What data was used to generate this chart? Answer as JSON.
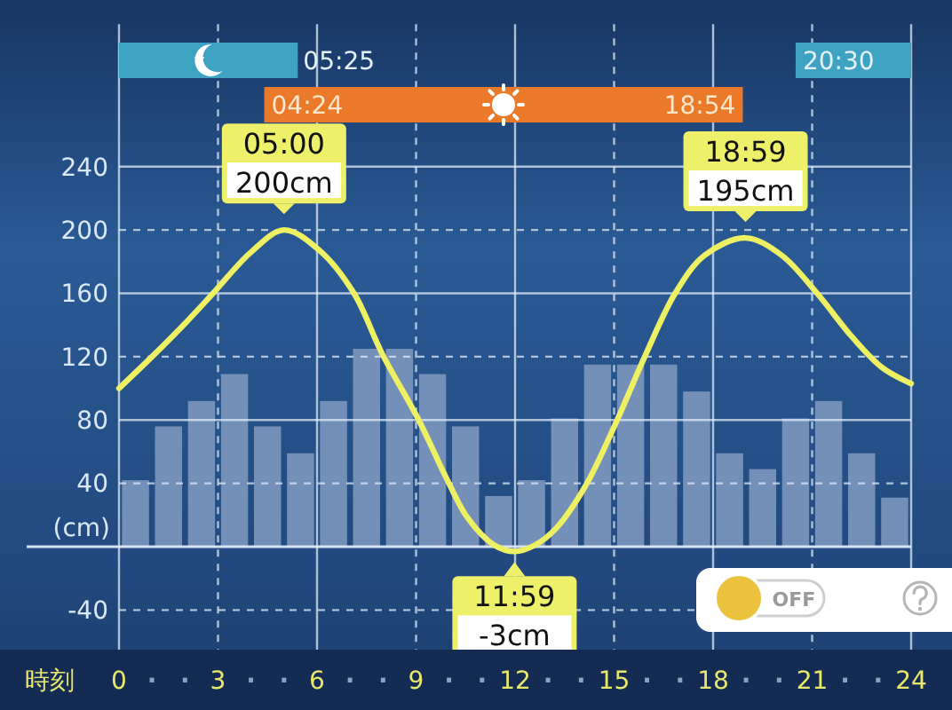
{
  "chart_data": {
    "type": "line",
    "xlabel": "時刻",
    "ylabel": "(cm)",
    "xlim": [
      0,
      24
    ],
    "ylim": [
      -65,
      330
    ],
    "xticks": [
      0,
      {
        "value": 1,
        "label": "·"
      },
      {
        "value": 2,
        "label": "·"
      },
      3,
      {
        "value": 4,
        "label": "·"
      },
      {
        "value": 5,
        "label": "·"
      },
      6,
      {
        "value": 7,
        "label": "·"
      },
      {
        "value": 8,
        "label": "·"
      },
      9,
      {
        "value": 10,
        "label": "·"
      },
      {
        "value": 11,
        "label": "·"
      },
      12,
      {
        "value": 13,
        "label": "·"
      },
      {
        "value": 14,
        "label": "·"
      },
      15,
      {
        "value": 16,
        "label": "·"
      },
      {
        "value": 17,
        "label": "·"
      },
      18,
      {
        "value": 19,
        "label": "·"
      },
      {
        "value": 20,
        "label": "·"
      },
      21,
      {
        "value": 22,
        "label": "·"
      },
      {
        "value": 23,
        "label": "·"
      },
      24
    ],
    "yticks": [
      -40,
      {
        "value": 0,
        "label": null
      },
      40,
      80,
      120,
      160,
      200,
      240
    ],
    "grid": true,
    "series": [
      {
        "type": "bar",
        "color": "#7590b8",
        "x": [
          0.5,
          1.5,
          2.5,
          3.5,
          4.5,
          5.5,
          6.5,
          7.5,
          8.5,
          9.5,
          10.5,
          11.5,
          12.5,
          13.5,
          14.5,
          15.5,
          16.5,
          17.5,
          18.5,
          19.5,
          20.5,
          21.5,
          22.5,
          23.5
        ],
        "values": [
          42,
          76,
          92,
          109,
          76,
          59,
          92,
          125,
          125,
          109,
          76,
          32,
          42,
          81,
          115,
          115,
          115,
          98,
          59,
          49,
          81,
          92,
          59,
          31
        ]
      },
      {
        "color": "#eef064",
        "x": [
          0,
          1,
          2,
          2.85,
          4,
          5,
          6.08,
          7.12,
          7.97,
          9.08,
          9.95,
          10.57,
          11.37,
          11.983,
          12.6,
          13.26,
          14.15,
          15.05,
          15.95,
          16.85,
          17.74,
          18.983,
          20.08,
          21.15,
          22.23,
          23.13,
          24
        ],
        "values": [
          100,
          120,
          141,
          160,
          186,
          200,
          187,
          160,
          122,
          80,
          42,
          18,
          1,
          -3,
          1,
          12,
          39,
          78,
          121,
          160,
          184,
          195,
          184,
          160,
          132,
          113,
          103
        ]
      }
    ],
    "bands": [
      {
        "axis": "x",
        "from": 0,
        "to": 5.417,
        "color": "#3ea2c3"
      },
      {
        "axis": "x",
        "from": 20.5,
        "to": 24,
        "color": "#3ea2c3"
      },
      {
        "axis": "x",
        "from": 4.4,
        "to": 18.9,
        "color": "#ea7a2a"
      }
    ],
    "annotations": [
      {
        "text": "05:25",
        "x": 5.417
      },
      {
        "text": "20:30",
        "x": 20.5
      },
      {
        "text": "04:24",
        "x": 4.4
      },
      {
        "text": "18:54",
        "x": 18.9
      },
      {
        "text": "05:00",
        "x": 5,
        "y": 200
      },
      {
        "text": "200cm",
        "x": 5,
        "y": 200
      },
      {
        "text": "11:59",
        "x": 11.983,
        "y": -3
      },
      {
        "text": "-3cm",
        "x": 11.983,
        "y": -3
      },
      {
        "text": "18:59",
        "x": 18.983,
        "y": 195
      },
      {
        "text": "195cm",
        "x": 18.983,
        "y": 195
      },
      "OFF"
    ]
  }
}
